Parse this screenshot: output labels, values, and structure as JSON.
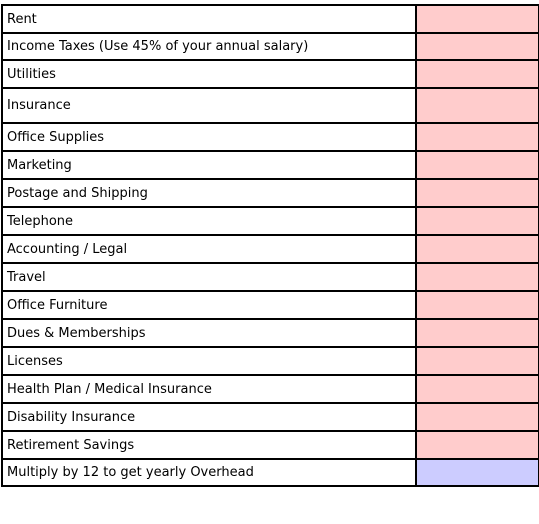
{
  "rows": [
    {
      "label": "Rent",
      "value": ""
    },
    {
      "label": "Income Taxes (Use 45% of your annual salary)",
      "value": ""
    },
    {
      "label": "Utilities",
      "value": ""
    },
    {
      "label": "Insurance",
      "value": ""
    },
    {
      "label": "Office Supplies",
      "value": ""
    },
    {
      "label": "Marketing",
      "value": ""
    },
    {
      "label": "Postage and Shipping",
      "value": ""
    },
    {
      "label": "Telephone",
      "value": ""
    },
    {
      "label": "Accounting / Legal",
      "value": ""
    },
    {
      "label": "Travel",
      "value": ""
    },
    {
      "label": "Office Furniture",
      "value": ""
    },
    {
      "label": "Dues & Memberships",
      "value": ""
    },
    {
      "label": "Licenses",
      "value": ""
    },
    {
      "label": "Health Plan / Medical Insurance",
      "value": ""
    },
    {
      "label": "Disability Insurance",
      "value": ""
    },
    {
      "label": "Retirement Savings",
      "value": ""
    }
  ],
  "total": {
    "label": "Multiply by 12 to get yearly Overhead",
    "value": ""
  },
  "colors": {
    "input_cell": "#ffcccc",
    "total_cell": "#ccccff",
    "border": "#000000"
  }
}
